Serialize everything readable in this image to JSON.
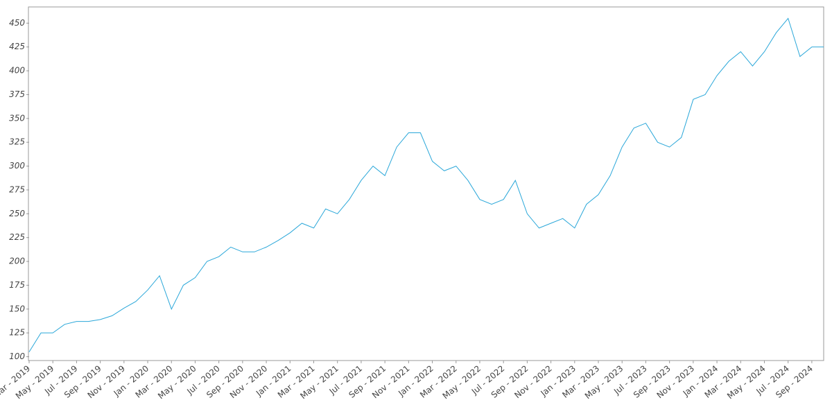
{
  "chart_data": {
    "type": "line",
    "categories": [
      "Mar - 2019",
      null,
      "May - 2019",
      null,
      "Jul - 2019",
      null,
      "Sep - 2019",
      null,
      "Nov - 2019",
      null,
      "Jan - 2020",
      null,
      "Mar - 2020",
      null,
      "May - 2020",
      null,
      "Jul - 2020",
      null,
      "Sep - 2020",
      null,
      "Nov - 2020",
      null,
      "Jan - 2021",
      null,
      "Mar - 2021",
      null,
      "May - 2021",
      null,
      "Jul - 2021",
      null,
      "Sep - 2021",
      null,
      "Nov - 2021",
      null,
      "Jan - 2022",
      null,
      "Mar - 2022",
      null,
      "May - 2022",
      null,
      "Jul - 2022",
      null,
      "Sep - 2022",
      null,
      "Nov - 2022",
      null,
      "Jan - 2023",
      null,
      "Mar - 2023",
      null,
      "May - 2023",
      null,
      "Jul - 2023",
      null,
      "Sep - 2023",
      null,
      "Nov - 2023",
      null,
      "Jan - 2024",
      null,
      "Mar - 2024",
      null,
      "May - 2024",
      null,
      "Jul - 2024",
      null,
      "Sep - 2024",
      null
    ],
    "values": [
      105,
      125,
      125,
      134,
      137,
      137,
      139,
      143,
      151,
      158,
      170,
      185,
      150,
      175,
      183,
      200,
      205,
      215,
      210,
      210,
      215,
      222,
      230,
      240,
      235,
      255,
      250,
      265,
      285,
      300,
      290,
      320,
      335,
      335,
      305,
      295,
      300,
      285,
      265,
      260,
      265,
      285,
      250,
      235,
      240,
      245,
      235,
      260,
      270,
      290,
      320,
      340,
      345,
      325,
      320,
      330,
      370,
      375,
      395,
      410,
      420,
      405,
      420,
      440,
      455,
      415,
      425,
      425
    ],
    "color": "#2aa7d9",
    "ylim": [
      96,
      467
    ],
    "yticks": [
      100,
      125,
      150,
      175,
      200,
      225,
      250,
      275,
      300,
      325,
      350,
      375,
      400,
      425,
      450
    ],
    "grid": false
  }
}
